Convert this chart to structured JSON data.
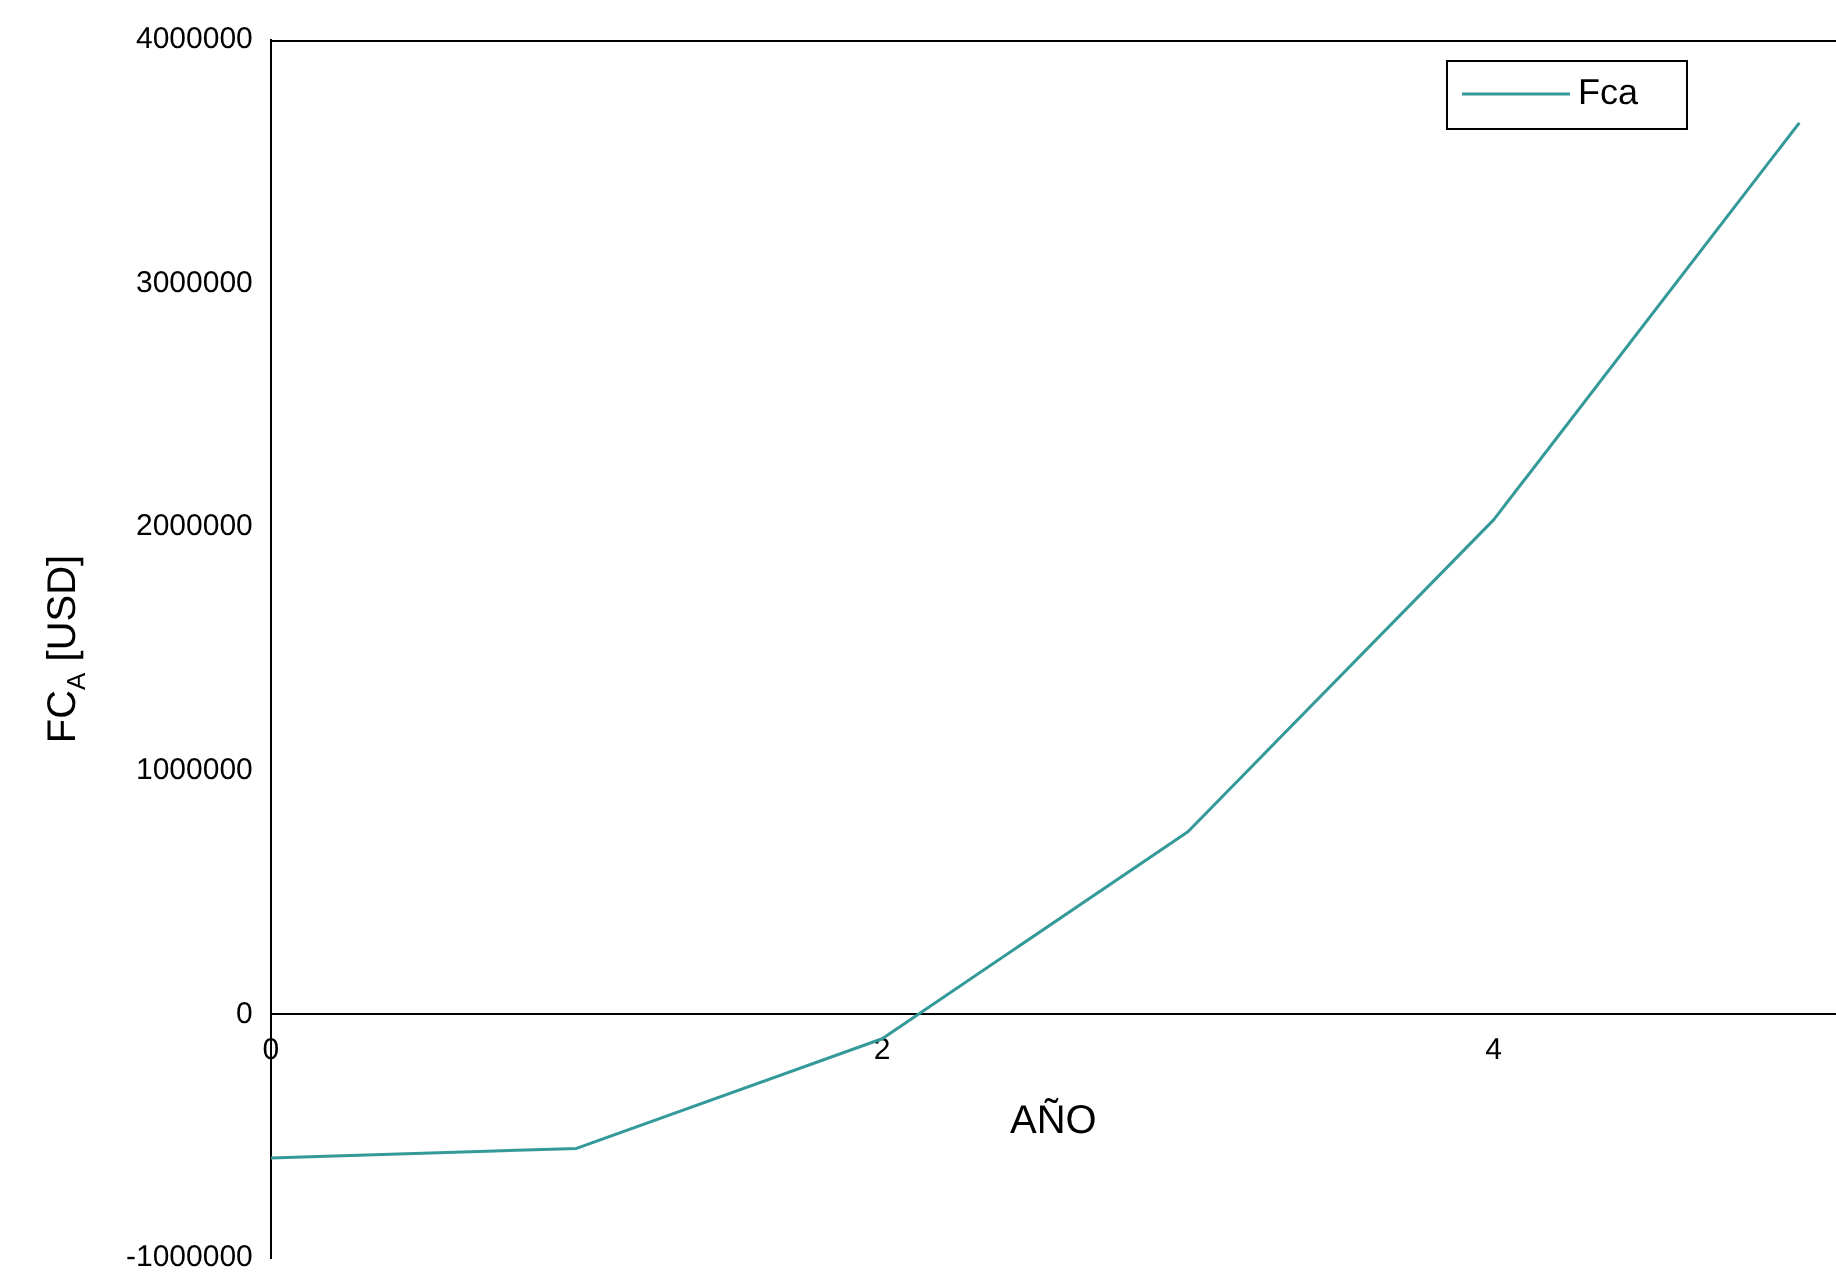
{
  "chart_data": {
    "type": "line",
    "xlabel": "AÑO",
    "ylabel": "FC$_{A}$ [USD]",
    "x": [
      0,
      1,
      2,
      3,
      4,
      5
    ],
    "series": [
      {
        "name": "Fca",
        "color": "#339999",
        "values": [
          -590000,
          -550000,
          -100000,
          750000,
          2030000,
          3660000
        ]
      }
    ],
    "xlim": [
      0,
      5.12
    ],
    "xticks": [
      0,
      2,
      4
    ],
    "ylim": [
      -1000000,
      4000000
    ],
    "yticks": [
      -1000000,
      0,
      1000000,
      2000000,
      3000000,
      4000000
    ],
    "grid": false,
    "legend": "top right",
    "marker": "none",
    "line_style": "solid"
  }
}
